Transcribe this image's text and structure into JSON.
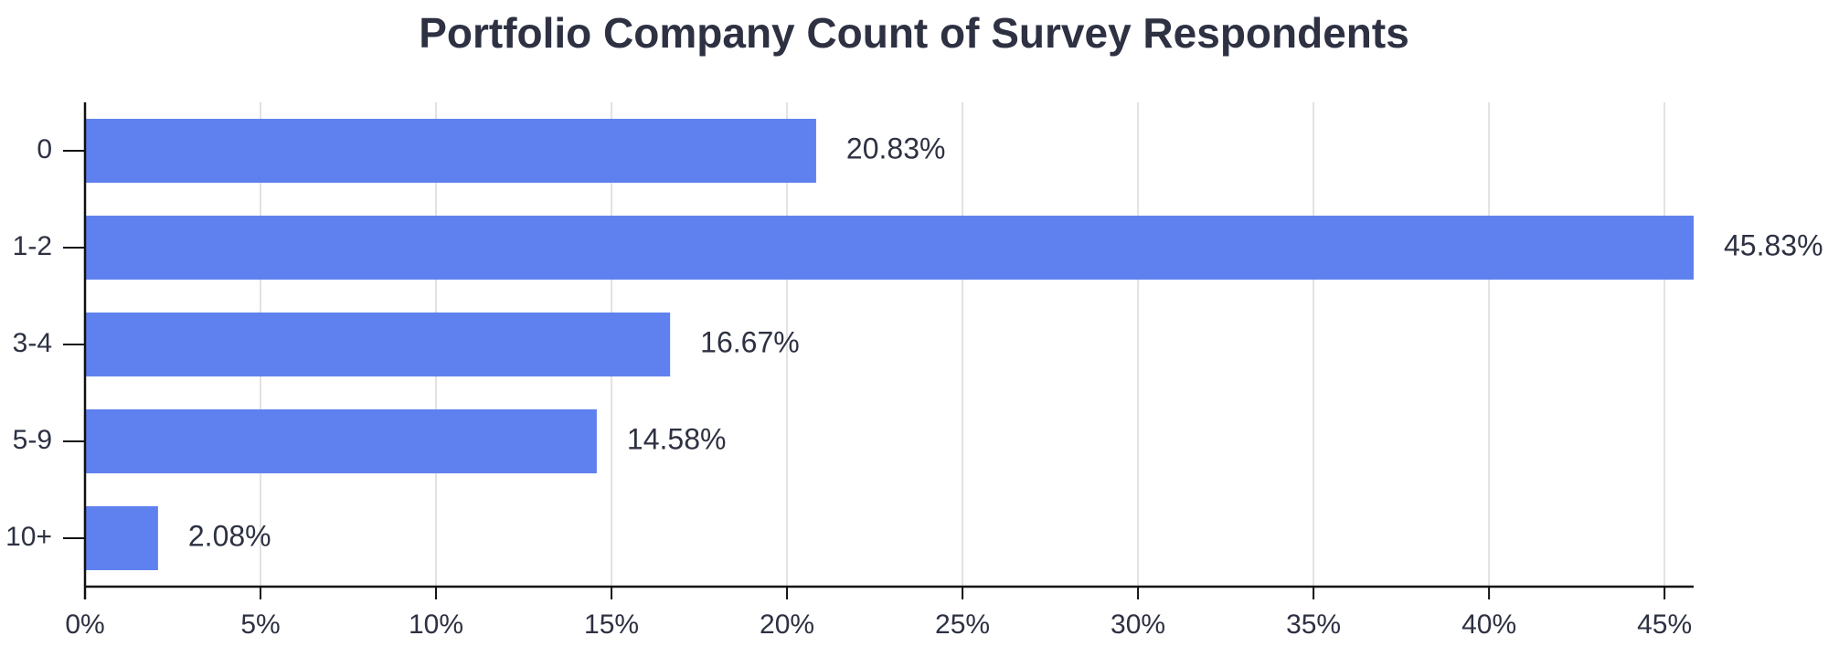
{
  "chart_data": {
    "type": "hbar",
    "title": "Portfolio Company Count of Survey Respondents",
    "categories": [
      "0",
      "1-2",
      "3-4",
      "5-9",
      "10+"
    ],
    "values": [
      20.83,
      45.83,
      16.67,
      14.58,
      2.08
    ],
    "value_labels": [
      "20.83%",
      "45.83%",
      "16.67%",
      "14.58%",
      "2.08%"
    ],
    "color": "#5e81ef",
    "xlim": [
      0,
      45.83
    ],
    "xticks": [
      {
        "value": 0,
        "label": "0%"
      },
      {
        "value": 5,
        "label": "5%"
      },
      {
        "value": 10,
        "label": "10%"
      },
      {
        "value": 15,
        "label": "15%"
      },
      {
        "value": 20,
        "label": "20%"
      },
      {
        "value": 25,
        "label": "25%"
      },
      {
        "value": 30,
        "label": "30%"
      },
      {
        "value": 35,
        "label": "35%"
      },
      {
        "value": 40,
        "label": "40%"
      },
      {
        "value": 45,
        "label": "45%"
      }
    ],
    "grid": true
  }
}
